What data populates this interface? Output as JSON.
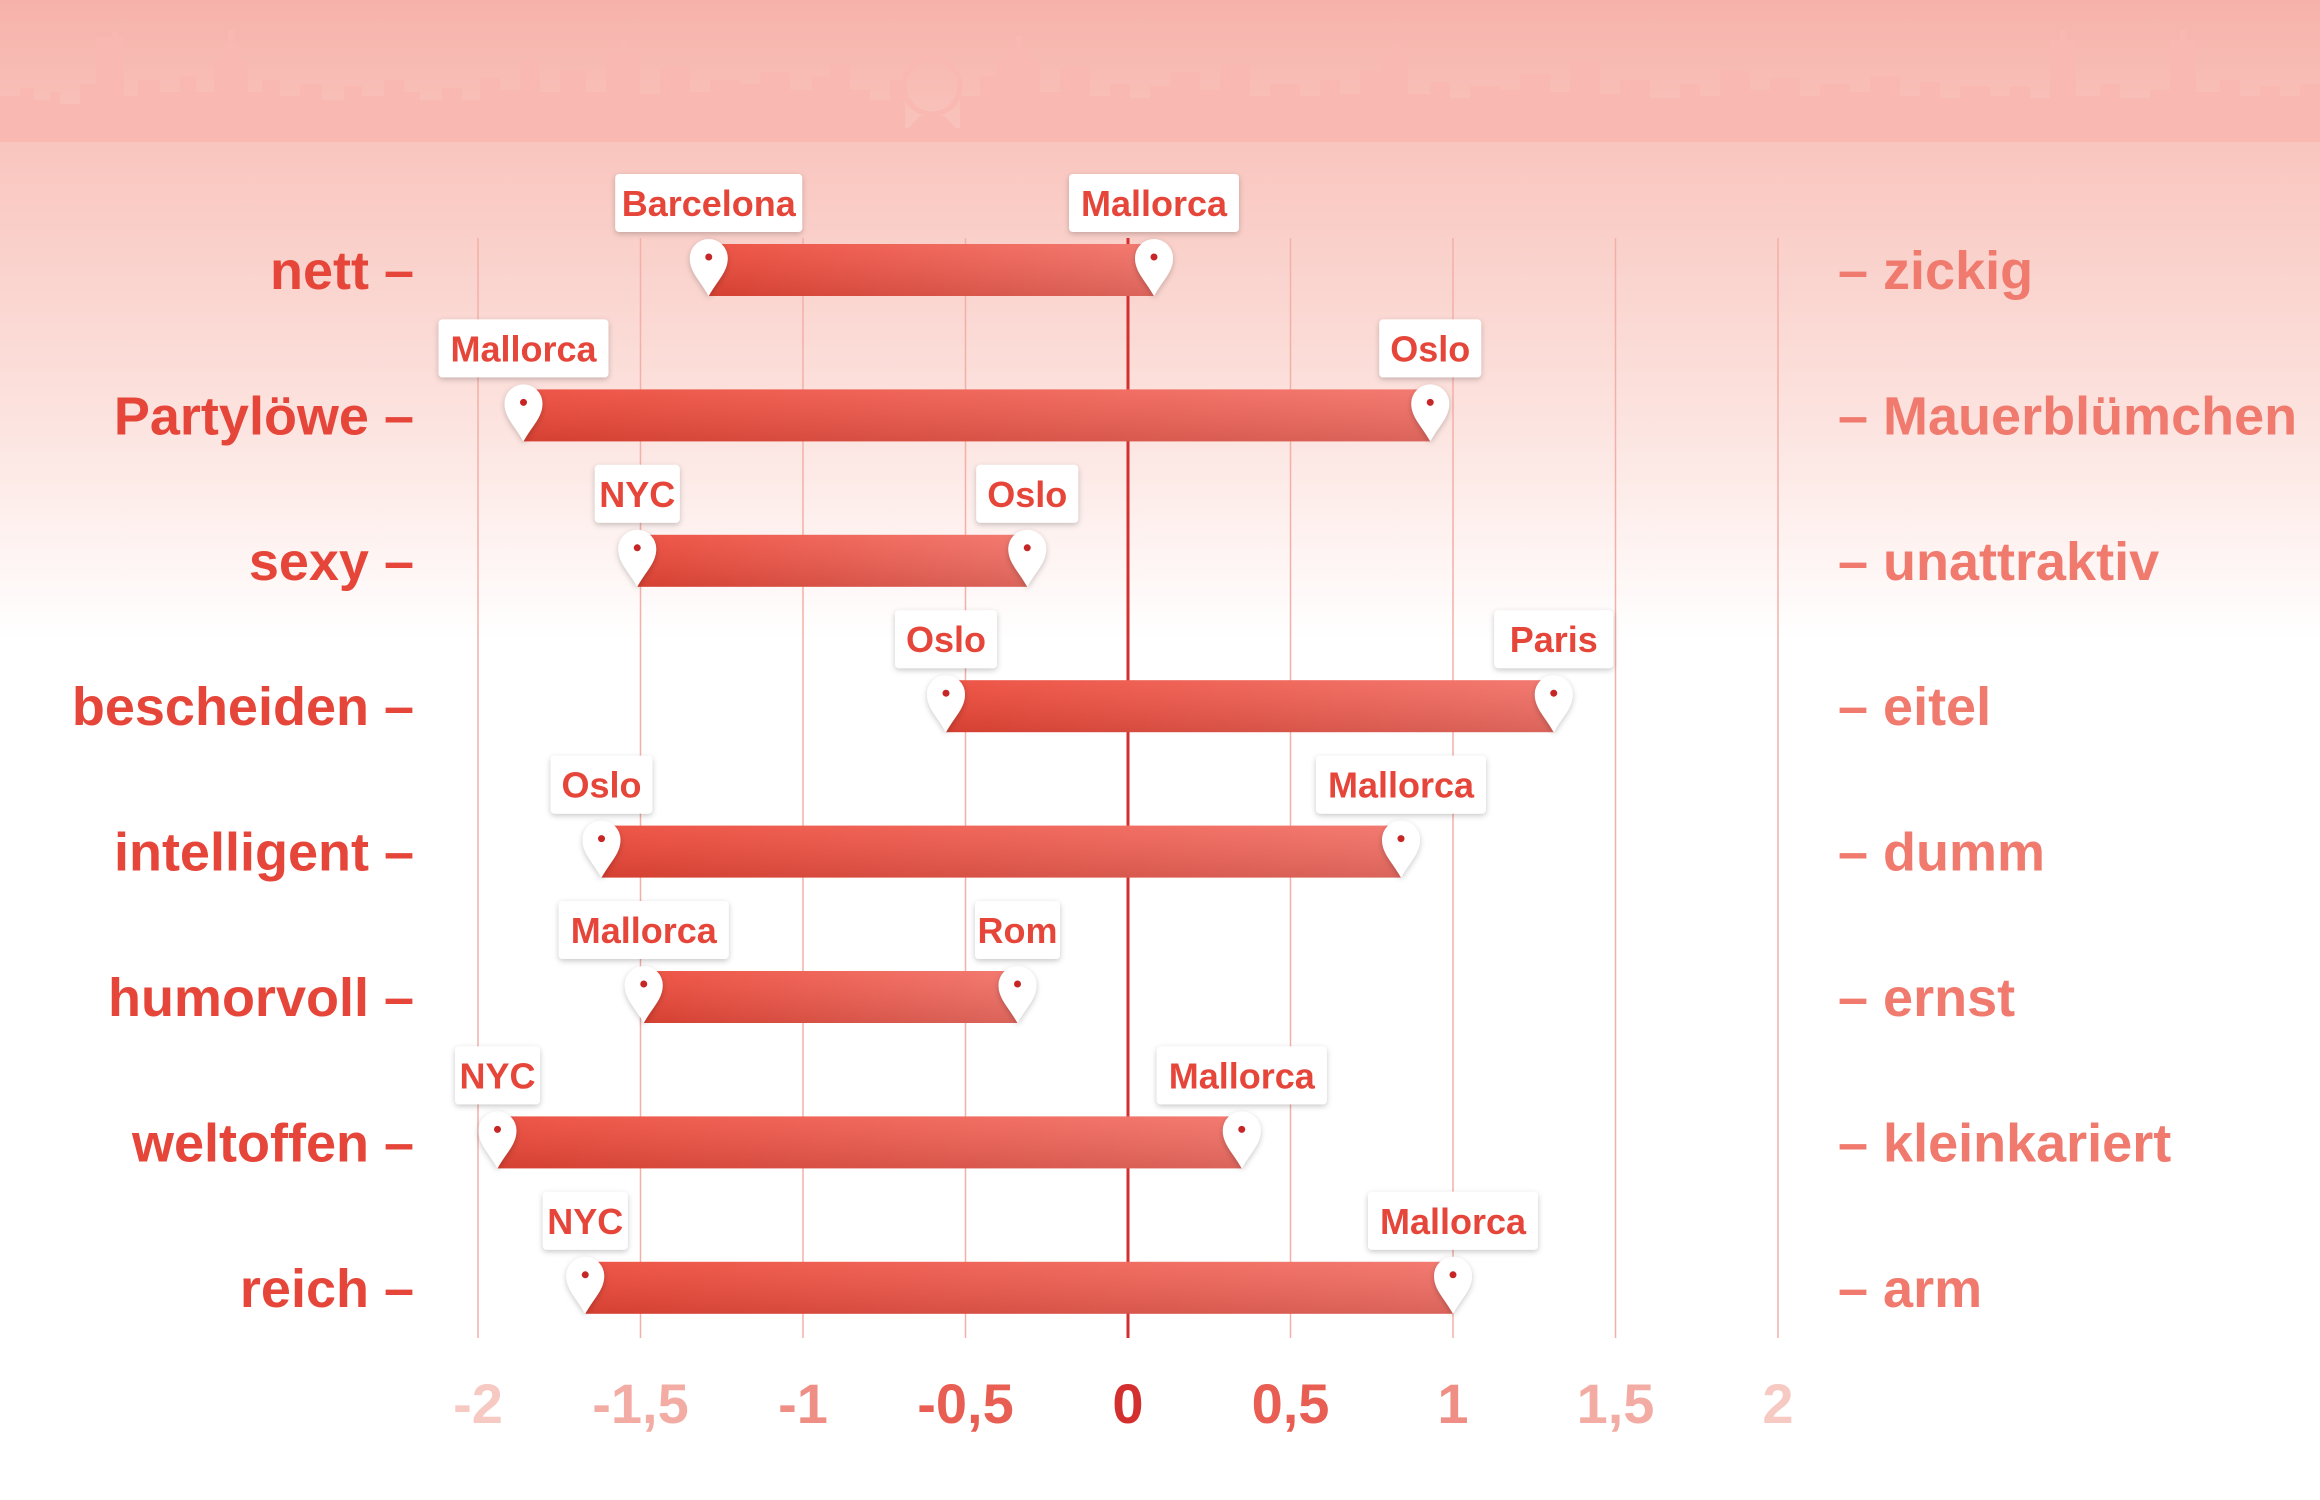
{
  "chart_data": {
    "type": "range-bar",
    "title": "",
    "xlim": [
      -2,
      2
    ],
    "xticks": [
      -2,
      -1.5,
      -1,
      -0.5,
      0,
      0.5,
      1,
      1.5,
      2
    ],
    "xtick_labels": [
      "-2",
      "-1,5",
      "-1",
      "-0,5",
      "0",
      "0,5",
      "1",
      "1,5",
      "2"
    ],
    "grid": true,
    "rows": [
      {
        "left": "nett",
        "right": "zickig",
        "min_label": "Barcelona",
        "min": -1.29,
        "max_label": "Mallorca",
        "max": 0.08
      },
      {
        "left": "Partylöwe",
        "right": "Mauerblümchen",
        "min_label": "Mallorca",
        "min": -1.86,
        "max_label": "Oslo",
        "max": 0.93
      },
      {
        "left": "sexy",
        "right": "unattraktiv",
        "min_label": "NYC",
        "min": -1.51,
        "max_label": "Oslo",
        "max": -0.31
      },
      {
        "left": "bescheiden",
        "right": "eitel",
        "min_label": "Oslo",
        "min": -0.56,
        "max_label": "Paris",
        "max": 1.31
      },
      {
        "left": "intelligent",
        "right": "dumm",
        "min_label": "Oslo",
        "min": -1.62,
        "max_label": "Mallorca",
        "max": 0.84
      },
      {
        "left": "humorvoll",
        "right": "ernst",
        "min_label": "Mallorca",
        "min": -1.49,
        "max_label": "Rom",
        "max": -0.34
      },
      {
        "left": "weltoffen",
        "right": "kleinkariert",
        "min_label": "NYC",
        "min": -1.94,
        "max_label": "Mallorca",
        "max": 0.35
      },
      {
        "left": "reich",
        "right": "arm",
        "min_label": "NYC",
        "min": -1.67,
        "max_label": "Mallorca",
        "max": 1.0
      }
    ],
    "colors": {
      "bar_start": "#ec4737",
      "bar_end": "#f26f65",
      "left_label": "#e6463a",
      "right_label": "#f07a6e",
      "zero_line": "#d32f2f",
      "skyline": "#f9b8b1"
    }
  }
}
